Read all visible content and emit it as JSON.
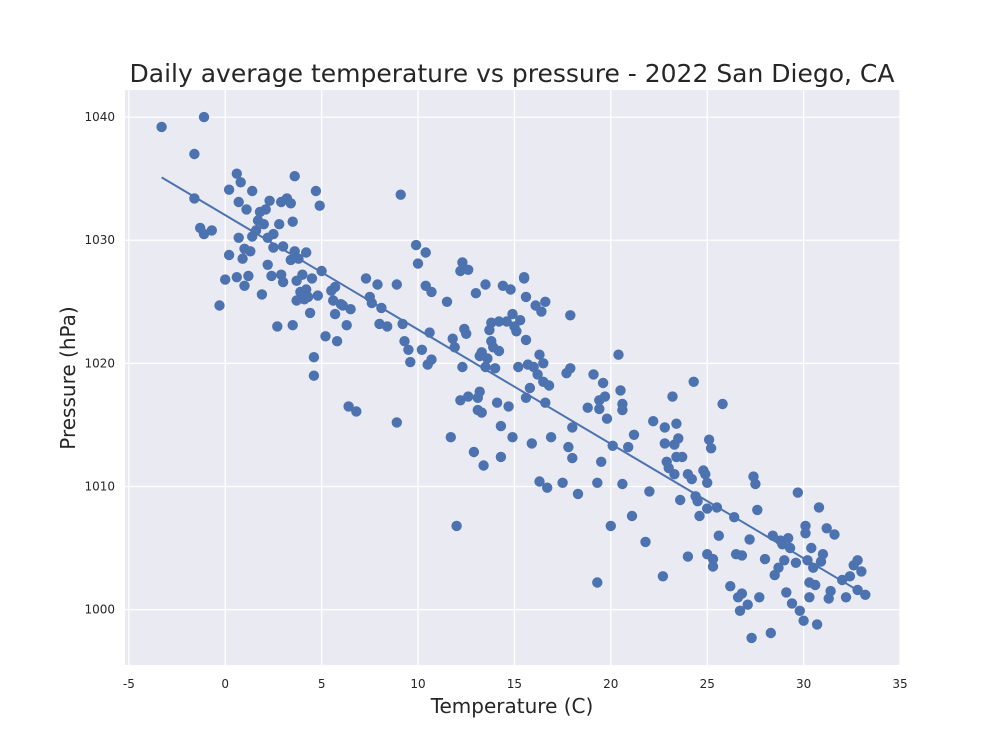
{
  "chart_data": {
    "type": "scatter",
    "title": "Daily average temperature vs pressure - 2022 San Diego, CA",
    "xlabel": "Temperature (C)",
    "ylabel": "Pressure (hPa)",
    "xlim": [
      -5.2,
      35.0
    ],
    "ylim": [
      995.5,
      1042.2
    ],
    "xticks": [
      -5,
      0,
      5,
      10,
      15,
      20,
      25,
      30,
      35
    ],
    "yticks": [
      1000,
      1010,
      1020,
      1030,
      1040
    ],
    "grid": true,
    "colors": {
      "points": "#4c72b0",
      "fit_line": "#4c72b0",
      "plot_background": "#eaeaf2",
      "grid": "#ffffff",
      "text": "#262626"
    },
    "fit_line": {
      "x": [
        -3.3,
        33.2
      ],
      "y": [
        1035.1,
        1001.2
      ]
    },
    "points": [
      [
        -3.3,
        1039.2
      ],
      [
        -1.6,
        1037.0
      ],
      [
        -1.1,
        1040.0
      ],
      [
        -1.6,
        1033.4
      ],
      [
        -1.3,
        1031.0
      ],
      [
        -1.1,
        1030.5
      ],
      [
        -0.7,
        1030.8
      ],
      [
        -0.3,
        1024.7
      ],
      [
        0.0,
        1026.8
      ],
      [
        0.2,
        1034.1
      ],
      [
        0.2,
        1028.8
      ],
      [
        0.6,
        1035.4
      ],
      [
        0.7,
        1033.1
      ],
      [
        0.7,
        1030.2
      ],
      [
        0.6,
        1027.0
      ],
      [
        0.8,
        1034.7
      ],
      [
        0.9,
        1028.5
      ],
      [
        1.0,
        1029.3
      ],
      [
        1.1,
        1032.5
      ],
      [
        1.0,
        1026.3
      ],
      [
        1.2,
        1027.1
      ],
      [
        1.4,
        1034.0
      ],
      [
        1.3,
        1029.1
      ],
      [
        1.4,
        1030.3
      ],
      [
        1.6,
        1030.8
      ],
      [
        1.7,
        1031.6
      ],
      [
        1.8,
        1032.3
      ],
      [
        1.9,
        1025.6
      ],
      [
        2.0,
        1031.3
      ],
      [
        2.1,
        1032.5
      ],
      [
        2.2,
        1030.2
      ],
      [
        2.3,
        1033.2
      ],
      [
        2.2,
        1028.0
      ],
      [
        2.4,
        1027.1
      ],
      [
        2.5,
        1030.5
      ],
      [
        2.5,
        1029.4
      ],
      [
        2.7,
        1023.0
      ],
      [
        2.8,
        1031.3
      ],
      [
        2.9,
        1033.1
      ],
      [
        2.9,
        1027.2
      ],
      [
        3.0,
        1029.5
      ],
      [
        3.0,
        1026.6
      ],
      [
        3.2,
        1033.4
      ],
      [
        3.4,
        1033.0
      ],
      [
        3.4,
        1028.4
      ],
      [
        3.5,
        1023.1
      ],
      [
        3.5,
        1031.5
      ],
      [
        3.6,
        1035.2
      ],
      [
        3.6,
        1029.1
      ],
      [
        3.7,
        1026.7
      ],
      [
        3.7,
        1025.1
      ],
      [
        3.8,
        1028.5
      ],
      [
        3.9,
        1025.8
      ],
      [
        4.0,
        1027.2
      ],
      [
        4.1,
        1025.2
      ],
      [
        4.2,
        1029.0
      ],
      [
        4.2,
        1026.0
      ],
      [
        4.3,
        1025.4
      ],
      [
        4.4,
        1024.1
      ],
      [
        4.5,
        1026.9
      ],
      [
        4.6,
        1020.5
      ],
      [
        4.6,
        1019.0
      ],
      [
        4.7,
        1034.0
      ],
      [
        4.8,
        1025.5
      ],
      [
        4.9,
        1032.8
      ],
      [
        5.0,
        1027.5
      ],
      [
        5.2,
        1022.2
      ],
      [
        5.5,
        1025.9
      ],
      [
        5.6,
        1025.1
      ],
      [
        5.7,
        1026.2
      ],
      [
        5.7,
        1024.0
      ],
      [
        5.8,
        1021.8
      ],
      [
        6.0,
        1024.8
      ],
      [
        6.1,
        1024.7
      ],
      [
        6.3,
        1023.1
      ],
      [
        6.4,
        1016.5
      ],
      [
        6.5,
        1024.4
      ],
      [
        6.8,
        1016.1
      ],
      [
        7.3,
        1026.9
      ],
      [
        7.5,
        1025.4
      ],
      [
        7.6,
        1024.9
      ],
      [
        7.9,
        1026.4
      ],
      [
        8.0,
        1023.2
      ],
      [
        8.1,
        1024.5
      ],
      [
        8.4,
        1023.0
      ],
      [
        8.9,
        1026.4
      ],
      [
        8.9,
        1015.2
      ],
      [
        9.1,
        1033.7
      ],
      [
        9.2,
        1023.2
      ],
      [
        9.3,
        1021.8
      ],
      [
        9.5,
        1021.1
      ],
      [
        9.6,
        1020.1
      ],
      [
        9.9,
        1029.6
      ],
      [
        10.0,
        1028.1
      ],
      [
        10.2,
        1021.1
      ],
      [
        10.4,
        1029.0
      ],
      [
        10.4,
        1026.3
      ],
      [
        10.5,
        1019.9
      ],
      [
        10.6,
        1022.5
      ],
      [
        10.7,
        1025.8
      ],
      [
        10.7,
        1020.3
      ],
      [
        11.5,
        1025.0
      ],
      [
        11.7,
        1014.0
      ],
      [
        11.8,
        1022.0
      ],
      [
        11.9,
        1021.3
      ],
      [
        12.0,
        1006.8
      ],
      [
        12.2,
        1027.5
      ],
      [
        12.3,
        1028.2
      ],
      [
        12.2,
        1017.0
      ],
      [
        12.3,
        1019.7
      ],
      [
        12.4,
        1022.8
      ],
      [
        12.5,
        1022.4
      ],
      [
        12.6,
        1027.6
      ],
      [
        12.6,
        1017.3
      ],
      [
        12.9,
        1012.8
      ],
      [
        13.0,
        1025.7
      ],
      [
        13.1,
        1017.2
      ],
      [
        13.1,
        1016.2
      ],
      [
        13.2,
        1020.6
      ],
      [
        13.3,
        1020.9
      ],
      [
        13.2,
        1017.7
      ],
      [
        13.3,
        1016.0
      ],
      [
        13.4,
        1011.7
      ],
      [
        13.5,
        1026.4
      ],
      [
        13.5,
        1019.7
      ],
      [
        13.6,
        1020.4
      ],
      [
        13.7,
        1022.7
      ],
      [
        13.8,
        1023.3
      ],
      [
        13.8,
        1021.8
      ],
      [
        13.9,
        1021.3
      ],
      [
        14.0,
        1019.6
      ],
      [
        14.1,
        1016.8
      ],
      [
        14.2,
        1023.4
      ],
      [
        14.2,
        1021.0
      ],
      [
        14.3,
        1014.9
      ],
      [
        14.3,
        1012.4
      ],
      [
        14.4,
        1026.3
      ],
      [
        14.6,
        1023.4
      ],
      [
        14.7,
        1016.5
      ],
      [
        14.8,
        1026.0
      ],
      [
        14.9,
        1024.0
      ],
      [
        14.9,
        1014.0
      ],
      [
        15.0,
        1023.0
      ],
      [
        15.1,
        1022.6
      ],
      [
        15.2,
        1019.7
      ],
      [
        15.3,
        1023.5
      ],
      [
        15.5,
        1027.0
      ],
      [
        15.5,
        1026.9
      ],
      [
        15.6,
        1025.4
      ],
      [
        15.6,
        1021.9
      ],
      [
        15.6,
        1017.2
      ],
      [
        15.7,
        1019.9
      ],
      [
        15.8,
        1018.0
      ],
      [
        15.9,
        1013.5
      ],
      [
        16.0,
        1019.7
      ],
      [
        16.1,
        1024.7
      ],
      [
        16.2,
        1019.1
      ],
      [
        16.3,
        1020.7
      ],
      [
        16.3,
        1010.4
      ],
      [
        16.4,
        1024.2
      ],
      [
        16.5,
        1020.0
      ],
      [
        16.5,
        1018.5
      ],
      [
        16.6,
        1025.0
      ],
      [
        16.6,
        1016.8
      ],
      [
        16.7,
        1009.9
      ],
      [
        16.8,
        1018.2
      ],
      [
        16.9,
        1014.0
      ],
      [
        17.5,
        1010.3
      ],
      [
        17.7,
        1019.2
      ],
      [
        17.8,
        1013.2
      ],
      [
        17.9,
        1023.9
      ],
      [
        17.9,
        1019.6
      ],
      [
        18.0,
        1014.8
      ],
      [
        18.0,
        1012.3
      ],
      [
        18.3,
        1009.4
      ],
      [
        18.8,
        1016.4
      ],
      [
        19.1,
        1019.1
      ],
      [
        19.3,
        1010.3
      ],
      [
        19.3,
        1002.2
      ],
      [
        19.4,
        1017.0
      ],
      [
        19.4,
        1016.3
      ],
      [
        19.5,
        1012.0
      ],
      [
        19.6,
        1018.4
      ],
      [
        19.7,
        1017.3
      ],
      [
        19.8,
        1015.5
      ],
      [
        20.0,
        1006.8
      ],
      [
        20.1,
        1013.3
      ],
      [
        20.4,
        1020.7
      ],
      [
        20.5,
        1017.8
      ],
      [
        20.6,
        1016.7
      ],
      [
        20.6,
        1016.2
      ],
      [
        20.6,
        1010.2
      ],
      [
        20.9,
        1013.2
      ],
      [
        21.1,
        1007.6
      ],
      [
        21.2,
        1014.2
      ],
      [
        21.8,
        1005.5
      ],
      [
        22.0,
        1009.6
      ],
      [
        22.2,
        1015.3
      ],
      [
        22.7,
        1002.7
      ],
      [
        22.8,
        1014.8
      ],
      [
        22.8,
        1013.5
      ],
      [
        22.9,
        1012.0
      ],
      [
        23.0,
        1011.5
      ],
      [
        23.2,
        1017.3
      ],
      [
        23.3,
        1013.4
      ],
      [
        23.3,
        1011.0
      ],
      [
        23.4,
        1015.1
      ],
      [
        23.4,
        1012.4
      ],
      [
        23.5,
        1013.9
      ],
      [
        23.6,
        1008.9
      ],
      [
        23.7,
        1012.4
      ],
      [
        24.0,
        1011.0
      ],
      [
        24.0,
        1004.3
      ],
      [
        24.2,
        1010.6
      ],
      [
        24.3,
        1018.5
      ],
      [
        24.4,
        1009.2
      ],
      [
        24.5,
        1008.8
      ],
      [
        24.6,
        1007.6
      ],
      [
        24.8,
        1011.3
      ],
      [
        24.9,
        1011.0
      ],
      [
        25.0,
        1010.3
      ],
      [
        25.0,
        1008.2
      ],
      [
        25.0,
        1004.5
      ],
      [
        25.1,
        1013.8
      ],
      [
        25.2,
        1013.1
      ],
      [
        25.3,
        1004.1
      ],
      [
        25.3,
        1003.5
      ],
      [
        25.5,
        1008.3
      ],
      [
        25.6,
        1006.0
      ],
      [
        25.8,
        1016.7
      ],
      [
        26.2,
        1001.9
      ],
      [
        26.4,
        1007.5
      ],
      [
        26.5,
        1004.5
      ],
      [
        26.6,
        1001.0
      ],
      [
        26.7,
        999.9
      ],
      [
        26.8,
        1004.4
      ],
      [
        26.8,
        1001.3
      ],
      [
        27.1,
        1000.4
      ],
      [
        27.2,
        1005.7
      ],
      [
        27.3,
        997.7
      ],
      [
        27.4,
        1010.8
      ],
      [
        27.5,
        1010.2
      ],
      [
        27.6,
        1008.1
      ],
      [
        27.7,
        1001.0
      ],
      [
        28.0,
        1004.1
      ],
      [
        28.3,
        998.1
      ],
      [
        28.4,
        1006.0
      ],
      [
        28.5,
        1002.8
      ],
      [
        28.7,
        1003.4
      ],
      [
        28.8,
        1005.6
      ],
      [
        28.9,
        1005.3
      ],
      [
        29.0,
        1004.0
      ],
      [
        29.1,
        1001.4
      ],
      [
        29.2,
        1005.8
      ],
      [
        29.3,
        1005.0
      ],
      [
        29.4,
        1000.5
      ],
      [
        29.6,
        1003.8
      ],
      [
        29.7,
        1009.5
      ],
      [
        29.8,
        999.9
      ],
      [
        30.0,
        999.1
      ],
      [
        30.1,
        1006.8
      ],
      [
        30.1,
        1006.2
      ],
      [
        30.2,
        1004.0
      ],
      [
        30.3,
        1002.2
      ],
      [
        30.3,
        1001.0
      ],
      [
        30.4,
        1005.0
      ],
      [
        30.5,
        1003.4
      ],
      [
        30.6,
        1002.0
      ],
      [
        30.7,
        998.8
      ],
      [
        30.8,
        1008.3
      ],
      [
        30.9,
        1003.9
      ],
      [
        31.0,
        1004.5
      ],
      [
        31.2,
        1006.6
      ],
      [
        31.3,
        1000.9
      ],
      [
        31.4,
        1001.5
      ],
      [
        31.6,
        1006.1
      ],
      [
        32.0,
        1002.4
      ],
      [
        32.2,
        1001.0
      ],
      [
        32.4,
        1002.7
      ],
      [
        32.6,
        1003.6
      ],
      [
        32.8,
        1004.0
      ],
      [
        32.8,
        1001.6
      ],
      [
        33.0,
        1003.1
      ],
      [
        33.2,
        1001.2
      ]
    ]
  }
}
